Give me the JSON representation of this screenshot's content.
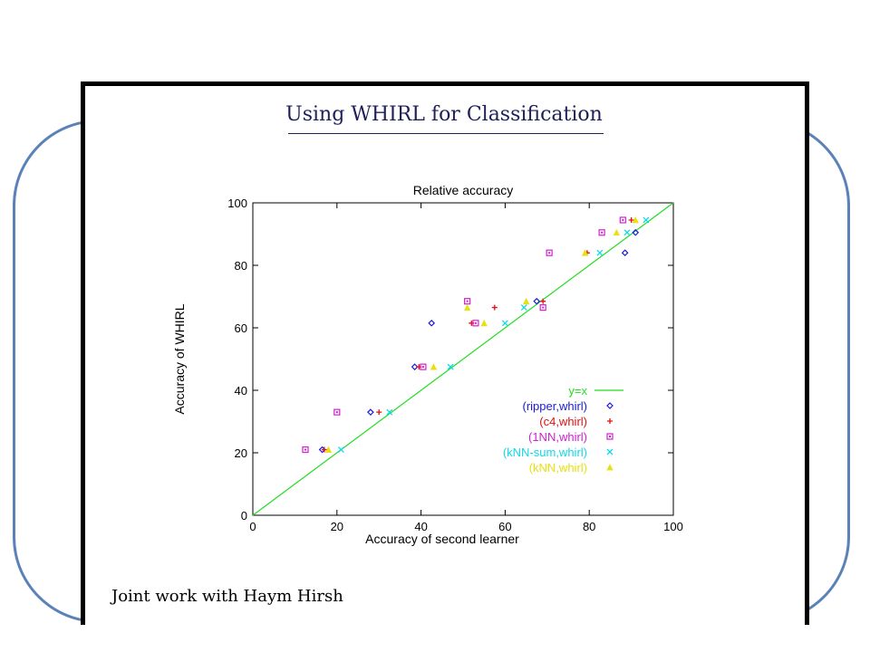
{
  "slide": {
    "title": "Using WHIRL for Classification",
    "footer": "Joint work with Haym Hirsh"
  },
  "chart_data": {
    "type": "scatter",
    "title": "Relative accuracy",
    "xlabel": "Accuracy of second learner",
    "ylabel": "Accuracy of WHIRL",
    "xlim": [
      0,
      100
    ],
    "ylim": [
      0,
      100
    ],
    "xticks": [
      0,
      20,
      40,
      60,
      80,
      100
    ],
    "yticks": [
      0,
      20,
      40,
      60,
      80,
      100
    ],
    "grid": false,
    "legend_position": "lower-right",
    "reference_line": {
      "name": "y=x",
      "color": "#22dd22"
    },
    "series": [
      {
        "name": "(ripper,whirl)",
        "color": "#1a1ad8",
        "marker": "diamond",
        "points": [
          [
            16.5,
            21
          ],
          [
            28,
            33
          ],
          [
            38.5,
            47.5
          ],
          [
            42.5,
            61.5
          ],
          [
            67.5,
            68.5
          ],
          [
            88.5,
            84
          ],
          [
            91,
            90.5
          ]
        ]
      },
      {
        "name": "(c4,whirl)",
        "color": "#e01010",
        "marker": "plus",
        "points": [
          [
            17,
            21
          ],
          [
            30,
            33
          ],
          [
            39.5,
            47.5
          ],
          [
            52,
            61.5
          ],
          [
            57.5,
            66.5
          ],
          [
            69,
            68.5
          ],
          [
            79.5,
            84
          ],
          [
            90,
            94.5
          ]
        ]
      },
      {
        "name": "(1NN,whirl)",
        "color": "#d020d0",
        "marker": "square",
        "points": [
          [
            12.5,
            21
          ],
          [
            20,
            33
          ],
          [
            40.5,
            47.5
          ],
          [
            51,
            68.5
          ],
          [
            53,
            61.5
          ],
          [
            69,
            66.5
          ],
          [
            70.5,
            84
          ],
          [
            83,
            90.5
          ],
          [
            88,
            94.5
          ]
        ]
      },
      {
        "name": "(kNN-sum,whirl)",
        "color": "#10d8e8",
        "marker": "cross",
        "points": [
          [
            21,
            21
          ],
          [
            32.5,
            33
          ],
          [
            47,
            47.5
          ],
          [
            60,
            61.5
          ],
          [
            64.5,
            66.5
          ],
          [
            82.5,
            84
          ],
          [
            89,
            90.5
          ],
          [
            93.5,
            94.5
          ]
        ]
      },
      {
        "name": "(kNN,whirl)",
        "color": "#e8e010",
        "marker": "triangle",
        "points": [
          [
            18,
            21
          ],
          [
            43,
            47.5
          ],
          [
            51,
            66.5
          ],
          [
            55,
            61.5
          ],
          [
            65,
            68.5
          ],
          [
            79,
            84
          ],
          [
            86.5,
            90.5
          ],
          [
            91,
            94.5
          ]
        ]
      }
    ]
  }
}
